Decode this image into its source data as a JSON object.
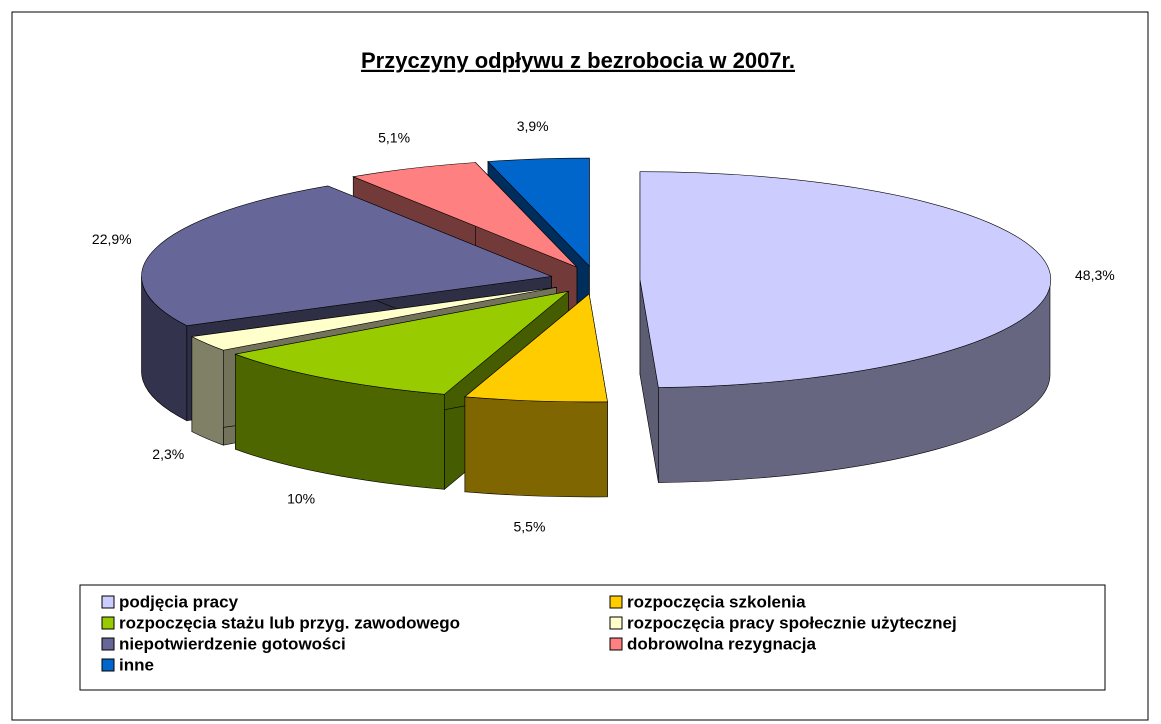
{
  "chart_data": {
    "type": "pie3d",
    "title": "Przyczyny odpływu z bezrobocia w  2007r.",
    "categories": [
      "podjęcia pracy",
      "rozpoczęcia szkolenia",
      "rozpoczęcia stażu lub przyg. zawodowego",
      "rozpoczęcia pracy społecznie użytecznej",
      "niepotwierdzenie gotowości",
      "dobrowolna rezygnacja",
      "inne"
    ],
    "values": [
      48.3,
      5.5,
      10,
      2.3,
      22.9,
      5.1,
      3.9
    ],
    "value_labels": [
      "48,3%",
      "5,5%",
      "10%",
      "2,3%",
      "22,9%",
      "5,1%",
      "3,9%"
    ],
    "colors": [
      "#ccccff",
      "#ffcc00",
      "#99cc00",
      "#ffffcc",
      "#666699",
      "#ff8080",
      "#0066cc"
    ],
    "legend": "bottom"
  }
}
